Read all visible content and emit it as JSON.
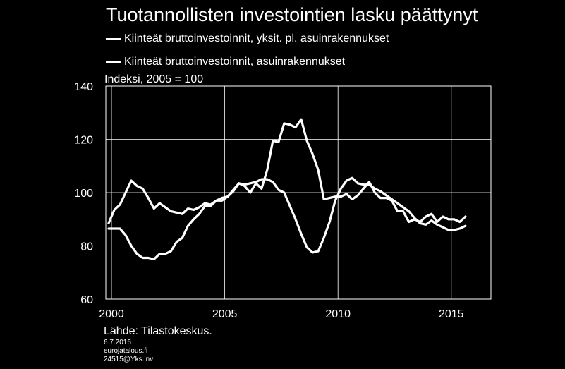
{
  "title": "Tuotannollisten investointien lasku päättynyt",
  "source": "Lähde: Tilastokeskus.",
  "date": "6.7.2016",
  "site": "eurojatalous.fi",
  "code": "24515@Yks.inv",
  "colors": {
    "background": "#000000",
    "line": "#ffffff",
    "grid": "#ffffff"
  },
  "chart_data": {
    "type": "line",
    "title": "Tuotannollisten investointien lasku päättynyt",
    "ylabel": "Indeksi, 2005 = 100",
    "xlabel": "",
    "xlim": [
      1999.75,
      2016.75
    ],
    "ylim": [
      60,
      140
    ],
    "yticks": [
      "60",
      "80",
      "100",
      "120",
      "140"
    ],
    "xticks": [
      "2000",
      "2005",
      "2010",
      "2015"
    ],
    "xtick_values": [
      2000,
      2005,
      2010,
      2015
    ],
    "grid": true,
    "legend": "top-left",
    "series": [
      {
        "name": "Kiinteät bruttoinvestoinnit, yksit. pl. asuinrakennukset",
        "x": [
          1999.875,
          2000.125,
          2000.375,
          2000.625,
          2000.875,
          2001.125,
          2001.375,
          2001.625,
          2001.875,
          2002.125,
          2002.375,
          2002.625,
          2002.875,
          2003.125,
          2003.375,
          2003.625,
          2003.875,
          2004.125,
          2004.375,
          2004.625,
          2004.875,
          2005.125,
          2005.375,
          2005.625,
          2005.875,
          2006.125,
          2006.375,
          2006.625,
          2006.875,
          2007.125,
          2007.375,
          2007.625,
          2007.875,
          2008.125,
          2008.375,
          2008.625,
          2008.875,
          2009.125,
          2009.375,
          2009.625,
          2009.875,
          2010.125,
          2010.375,
          2010.625,
          2010.875,
          2011.125,
          2011.375,
          2011.625,
          2011.875,
          2012.125,
          2012.375,
          2012.625,
          2012.875,
          2013.125,
          2013.375,
          2013.625,
          2013.875,
          2014.125,
          2014.375,
          2014.625,
          2014.875,
          2015.125,
          2015.375,
          2015.625
        ],
        "y": [
          86.5,
          86.5,
          86.5,
          84,
          80,
          77,
          75.5,
          75.5,
          75,
          77,
          77,
          78,
          81.5,
          83,
          87.5,
          90,
          92,
          95,
          95,
          97,
          97,
          98.5,
          100.5,
          103.5,
          103,
          103.5,
          104,
          105,
          105,
          104,
          101,
          100,
          95,
          90,
          84.5,
          79.5,
          77.5,
          78,
          83,
          89,
          97,
          101.5,
          104.5,
          105.5,
          103.5,
          103,
          103,
          101.5,
          100.5,
          99,
          97.5,
          96,
          94.5,
          93,
          90.5,
          88.5,
          88,
          89.5,
          88,
          87,
          86,
          86,
          86.5,
          87.5
        ]
      },
      {
        "name": "Kiinteät bruttoinvestoinnit, asuinrakennukset",
        "x": [
          1999.875,
          2000.125,
          2000.375,
          2000.625,
          2000.875,
          2001.125,
          2001.375,
          2001.625,
          2001.875,
          2002.125,
          2002.375,
          2002.625,
          2002.875,
          2003.125,
          2003.375,
          2003.625,
          2003.875,
          2004.125,
          2004.375,
          2004.625,
          2004.875,
          2005.125,
          2005.375,
          2005.625,
          2005.875,
          2006.125,
          2006.375,
          2006.625,
          2006.875,
          2007.125,
          2007.375,
          2007.625,
          2007.875,
          2008.125,
          2008.375,
          2008.625,
          2008.875,
          2009.125,
          2009.375,
          2009.625,
          2009.875,
          2010.125,
          2010.375,
          2010.625,
          2010.875,
          2011.125,
          2011.375,
          2011.625,
          2011.875,
          2012.125,
          2012.375,
          2012.625,
          2012.875,
          2013.125,
          2013.375,
          2013.625,
          2013.875,
          2014.125,
          2014.375,
          2014.625,
          2014.875,
          2015.125,
          2015.375,
          2015.625
        ],
        "y": [
          88.5,
          93.5,
          95.5,
          100,
          104.5,
          102.5,
          101.5,
          98,
          94,
          96,
          94.5,
          93,
          92.5,
          92,
          94,
          93.5,
          94.5,
          96,
          95.5,
          97,
          98,
          98.5,
          101,
          103.5,
          102.5,
          100,
          103.5,
          101.5,
          108.5,
          119.5,
          119,
          126,
          125.5,
          124.5,
          127.5,
          119.5,
          114.5,
          108.5,
          97.5,
          98,
          98.5,
          98.5,
          99.5,
          97.5,
          99,
          101.5,
          104,
          100,
          98,
          98,
          97,
          93,
          93,
          89,
          90,
          89,
          91,
          92,
          89,
          91,
          90,
          90,
          89,
          91
        ]
      }
    ]
  }
}
